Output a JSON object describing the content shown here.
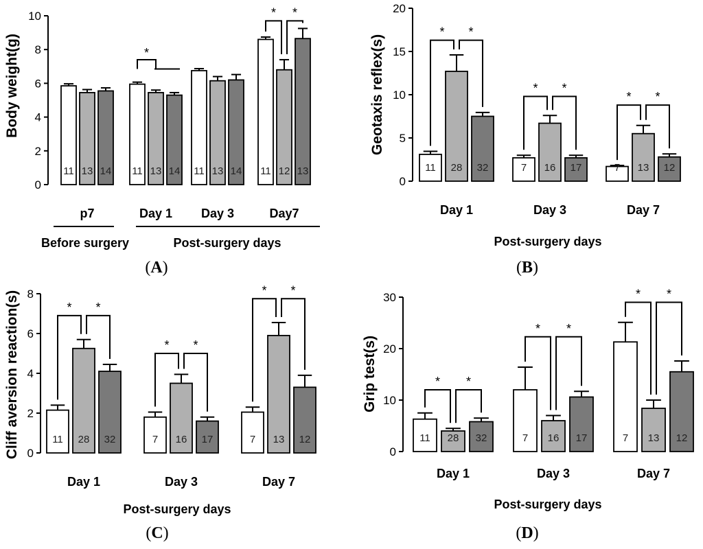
{
  "colors": {
    "control": "#ffffff",
    "group2": "#b0b0b0",
    "group3": "#7a7a7a",
    "stroke": "#000000"
  },
  "chart_data": [
    {
      "type": "bar",
      "panel": "A",
      "panel_label": "(A)",
      "ylabel": "Body weight(g)",
      "ylim": [
        0,
        10
      ],
      "yticks": [
        0,
        2,
        4,
        6,
        8,
        10
      ],
      "categories": [
        "p7",
        "Day 1",
        "Day 3",
        "Day7"
      ],
      "series": [
        {
          "name": "group1",
          "values": [
            5.85,
            5.95,
            6.75,
            8.6
          ],
          "errors": [
            0.12,
            0.12,
            0.12,
            0.14
          ],
          "n": [
            "11",
            "11",
            "11",
            "11"
          ]
        },
        {
          "name": "group2",
          "values": [
            5.45,
            5.45,
            6.15,
            6.8
          ],
          "errors": [
            0.18,
            0.15,
            0.25,
            0.6
          ],
          "n": [
            "13",
            "13",
            "13",
            "12"
          ]
        },
        {
          "name": "group3",
          "values": [
            5.55,
            5.3,
            6.2,
            8.65
          ],
          "errors": [
            0.18,
            0.15,
            0.32,
            0.6
          ],
          "n": [
            "14",
            "14",
            "14",
            "13"
          ]
        }
      ],
      "significance": [
        {
          "cat": 1,
          "type": "one-vs-rest",
          "y": 7.4,
          "label": "*"
        },
        {
          "cat": 3,
          "from": 0,
          "to": 1,
          "y": 9.7,
          "label": "*"
        },
        {
          "cat": 3,
          "from": 1,
          "to": 2,
          "y": 9.7,
          "label": "*"
        }
      ],
      "group_labels": [
        "Before surgery",
        "Post-surgery days"
      ]
    },
    {
      "type": "bar",
      "panel": "B",
      "panel_label": "(B)",
      "ylabel": "Geotaxis reflex(s)",
      "xlabel": "Post-surgery days",
      "ylim": [
        0,
        20
      ],
      "yticks": [
        0,
        5,
        10,
        15,
        20
      ],
      "categories": [
        "Day 1",
        "Day 3",
        "Day 7"
      ],
      "series": [
        {
          "name": "group1",
          "values": [
            3.1,
            2.7,
            1.7
          ],
          "errors": [
            0.35,
            0.3,
            0.12
          ],
          "n": [
            "11",
            "7",
            "7"
          ]
        },
        {
          "name": "group2",
          "values": [
            12.7,
            6.7,
            5.5
          ],
          "errors": [
            1.9,
            0.9,
            0.95
          ],
          "n": [
            "28",
            "16",
            "13"
          ]
        },
        {
          "name": "group3",
          "values": [
            7.5,
            2.7,
            2.8
          ],
          "errors": [
            0.45,
            0.3,
            0.35
          ],
          "n": [
            "32",
            "17",
            "12"
          ]
        }
      ],
      "significance": [
        {
          "cat": 0,
          "from": 0,
          "to": 1,
          "y": 16.3,
          "label": "*"
        },
        {
          "cat": 0,
          "from": 1,
          "to": 2,
          "y": 16.3,
          "label": "*"
        },
        {
          "cat": 1,
          "from": 0,
          "to": 1,
          "y": 9.8,
          "label": "*"
        },
        {
          "cat": 1,
          "from": 1,
          "to": 2,
          "y": 9.8,
          "label": "*"
        },
        {
          "cat": 2,
          "from": 0,
          "to": 1,
          "y": 8.8,
          "label": "*"
        },
        {
          "cat": 2,
          "from": 1,
          "to": 2,
          "y": 8.8,
          "label": "*"
        }
      ]
    },
    {
      "type": "bar",
      "panel": "C",
      "panel_label": "(C)",
      "ylabel": "Cliff aversion reaction(s)",
      "xlabel": "Post-surgery days",
      "ylim": [
        0,
        8
      ],
      "yticks": [
        0,
        2,
        4,
        6,
        8
      ],
      "categories": [
        "Day 1",
        "Day 3",
        "Day 7"
      ],
      "series": [
        {
          "name": "group1",
          "values": [
            2.15,
            1.8,
            2.05
          ],
          "errors": [
            0.25,
            0.25,
            0.25
          ],
          "n": [
            "11",
            "7",
            "7"
          ]
        },
        {
          "name": "group2",
          "values": [
            5.25,
            3.5,
            5.9
          ],
          "errors": [
            0.45,
            0.45,
            0.65
          ],
          "n": [
            "28",
            "16",
            "13"
          ]
        },
        {
          "name": "group3",
          "values": [
            4.1,
            1.6,
            3.3
          ],
          "errors": [
            0.35,
            0.2,
            0.6
          ],
          "n": [
            "32",
            "17",
            "12"
          ]
        }
      ],
      "significance": [
        {
          "cat": 0,
          "from": 0,
          "to": 1,
          "y": 6.9,
          "label": "*"
        },
        {
          "cat": 0,
          "from": 1,
          "to": 2,
          "y": 6.9,
          "label": "*"
        },
        {
          "cat": 1,
          "from": 0,
          "to": 1,
          "y": 5.0,
          "label": "*"
        },
        {
          "cat": 1,
          "from": 1,
          "to": 2,
          "y": 5.0,
          "label": "*"
        },
        {
          "cat": 2,
          "from": 0,
          "to": 1,
          "y": 7.75,
          "label": "*"
        },
        {
          "cat": 2,
          "from": 1,
          "to": 2,
          "y": 7.75,
          "label": "*"
        }
      ]
    },
    {
      "type": "bar",
      "panel": "D",
      "panel_label": "(D)",
      "ylabel": "Grip test(s)",
      "xlabel": "Post-surgery days",
      "ylim": [
        0,
        30
      ],
      "yticks": [
        0,
        10,
        20,
        30
      ],
      "categories": [
        "Day 1",
        "Day 3",
        "Day 7"
      ],
      "series": [
        {
          "name": "group1",
          "values": [
            6.3,
            12.0,
            21.3
          ],
          "errors": [
            1.2,
            4.4,
            3.8
          ],
          "n": [
            "11",
            "7",
            "7"
          ]
        },
        {
          "name": "group2",
          "values": [
            4.0,
            6.0,
            8.4
          ],
          "errors": [
            0.5,
            1.0,
            1.6
          ],
          "n": [
            "28",
            "16",
            "13"
          ]
        },
        {
          "name": "group3",
          "values": [
            5.8,
            10.6,
            15.5
          ],
          "errors": [
            0.7,
            1.1,
            2.1
          ],
          "n": [
            "32",
            "17",
            "12"
          ]
        }
      ],
      "significance": [
        {
          "cat": 0,
          "from": 0,
          "to": 1,
          "y": 12.0,
          "label": "*"
        },
        {
          "cat": 0,
          "from": 1,
          "to": 2,
          "y": 12.0,
          "label": "*"
        },
        {
          "cat": 1,
          "from": 0,
          "to": 1,
          "y": 22.3,
          "label": "*"
        },
        {
          "cat": 1,
          "from": 1,
          "to": 2,
          "y": 22.3,
          "label": "*"
        },
        {
          "cat": 2,
          "from": 0,
          "to": 1,
          "y": 29.0,
          "label": "*"
        },
        {
          "cat": 2,
          "from": 1,
          "to": 2,
          "y": 29.0,
          "label": "*"
        }
      ]
    }
  ]
}
